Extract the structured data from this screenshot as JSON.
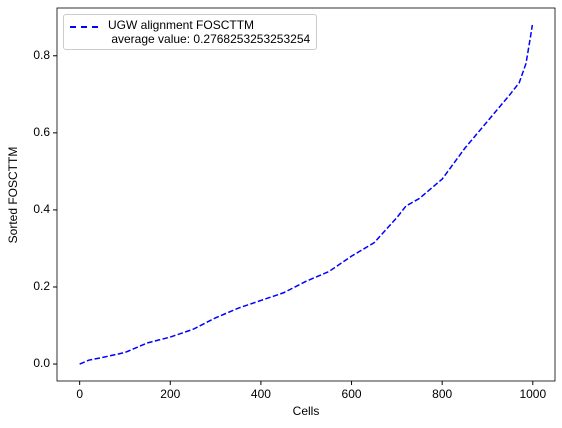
{
  "chart_data": {
    "type": "line",
    "xlabel": "Cells",
    "ylabel": "Sorted FOSCTTM",
    "x": [
      0,
      20,
      50,
      100,
      150,
      200,
      250,
      300,
      350,
      400,
      450,
      500,
      550,
      600,
      650,
      700,
      720,
      750,
      800,
      850,
      900,
      950,
      970,
      985,
      995,
      999
    ],
    "series": [
      {
        "name": "UGW alignment FOSCTTM\n average value: 0.2768253253253254",
        "color": "#0000ff",
        "values": [
          0.0,
          0.01,
          0.017,
          0.03,
          0.055,
          0.07,
          0.09,
          0.12,
          0.145,
          0.165,
          0.185,
          0.215,
          0.24,
          0.28,
          0.315,
          0.38,
          0.41,
          0.43,
          0.48,
          0.56,
          0.63,
          0.7,
          0.73,
          0.78,
          0.85,
          0.88
        ]
      }
    ],
    "xlim": [
      -50,
      1049
    ],
    "xticks": [
      0,
      200,
      400,
      600,
      800,
      1000
    ],
    "ylim": [
      -0.044,
      0.924
    ],
    "yticks": [
      {
        "value": 0,
        "label": "0.0"
      },
      0.2,
      0.4,
      0.6,
      0.8
    ],
    "legend": "upper left"
  }
}
